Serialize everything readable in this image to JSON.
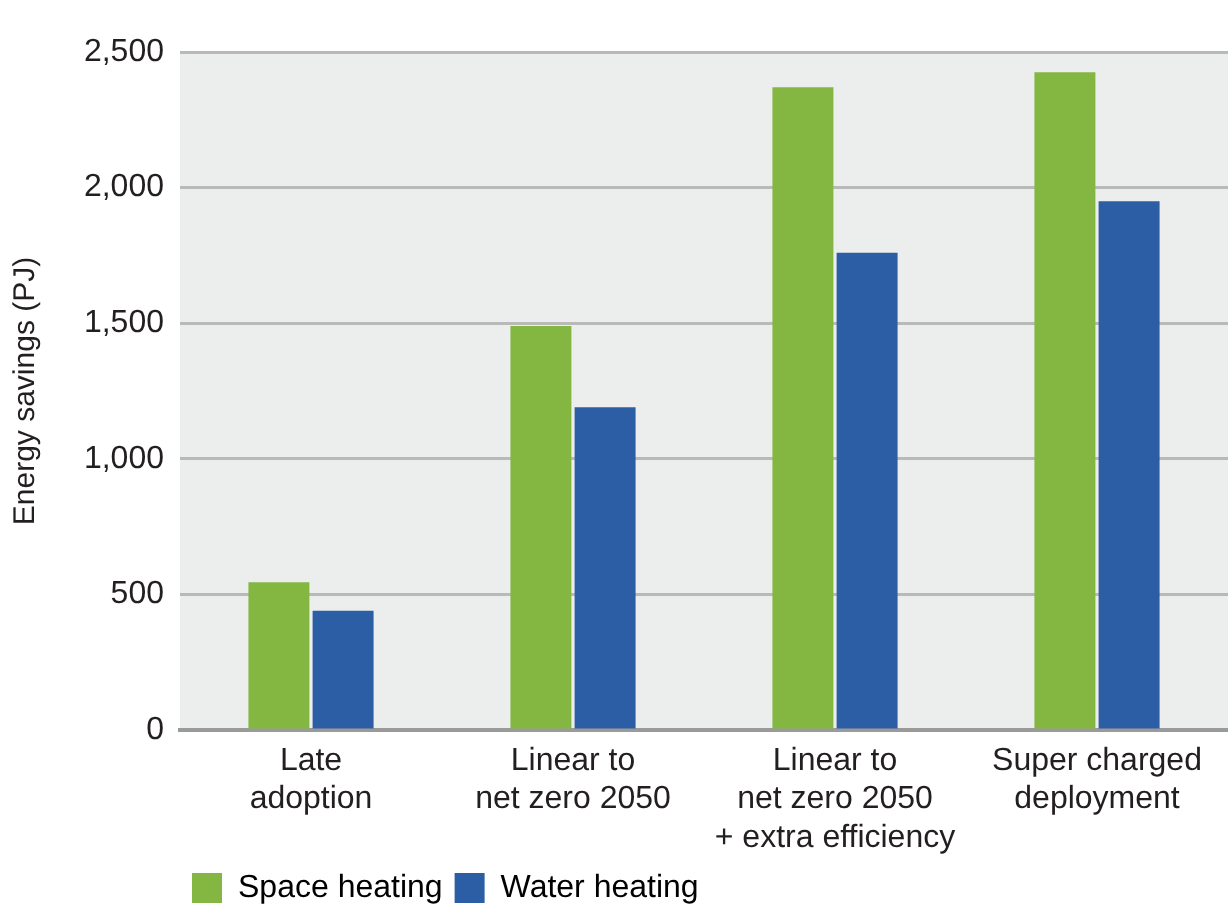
{
  "chart_data": {
    "type": "bar",
    "ylabel": "Energy savings (PJ)",
    "categories": [
      "Late\nadoption",
      "Linear to\nnet zero 2050",
      "Linear to\nnet zero 2050\n+ extra efficiency",
      "Super charged\ndeployment"
    ],
    "series": [
      {
        "name": "Space heating",
        "color": "#84b742",
        "values": [
          545,
          1490,
          2370,
          2425
        ]
      },
      {
        "name": "Water heating",
        "color": "#2c5ea5",
        "values": [
          440,
          1190,
          1760,
          1950
        ]
      }
    ],
    "ylim": [
      0,
      2500
    ],
    "yticks": [
      0,
      500,
      {
        "value": 1000,
        "label": "1,000"
      },
      {
        "value": 1500,
        "label": "1,500"
      },
      {
        "value": 2000,
        "label": "2,000"
      },
      {
        "value": 2500,
        "label": "2,500"
      }
    ],
    "grid": "y",
    "legend": "bottom left"
  }
}
